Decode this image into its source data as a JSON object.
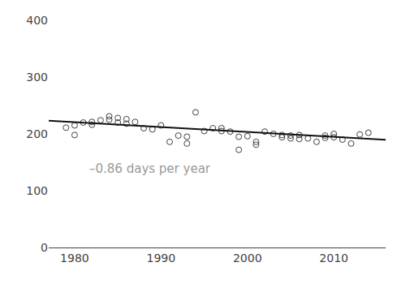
{
  "chart_data": {
    "type": "scatter",
    "annotation": {
      "text": "–0.86 days per year",
      "color": "#999999"
    },
    "xlim": [
      1977,
      2016
    ],
    "ylim": [
      0,
      400
    ],
    "xticks": [
      1980,
      1990,
      2000,
      2010
    ],
    "yticks": [
      0,
      100,
      200,
      300,
      400
    ],
    "grid": false,
    "series": [
      {
        "type": "scatter",
        "marker": "open circle",
        "color": "#404040",
        "x": [
          1979,
          1980,
          1980,
          1981,
          1982,
          1982,
          1983,
          1984,
          1984,
          1985,
          1985,
          1986,
          1986,
          1987,
          1988,
          1989,
          1990,
          1991,
          1992,
          1993,
          1993,
          1994,
          1995,
          1996,
          1997,
          1997,
          1998,
          1999,
          1999,
          2000,
          2001,
          2001,
          2002,
          2003,
          2004,
          2004,
          2005,
          2005,
          2006,
          2006,
          2007,
          2008,
          2009,
          2009,
          2010,
          2010,
          2011,
          2012,
          2013,
          2014
        ],
        "values": [
          211,
          215,
          198,
          220,
          221,
          216,
          224,
          231,
          225,
          228,
          220,
          226,
          218,
          221,
          210,
          208,
          215,
          186,
          197,
          195,
          183,
          238,
          205,
          210,
          210,
          205,
          204,
          172,
          195,
          196,
          186,
          181,
          204,
          200,
          198,
          194,
          197,
          192,
          198,
          191,
          192,
          186,
          197,
          193,
          200,
          194,
          190,
          183,
          199,
          202
        ]
      },
      {
        "type": "line",
        "line_style": "solid",
        "color": "#111111",
        "x": [
          1977,
          2016
        ],
        "values": [
          223.22,
          189.68
        ]
      }
    ]
  }
}
